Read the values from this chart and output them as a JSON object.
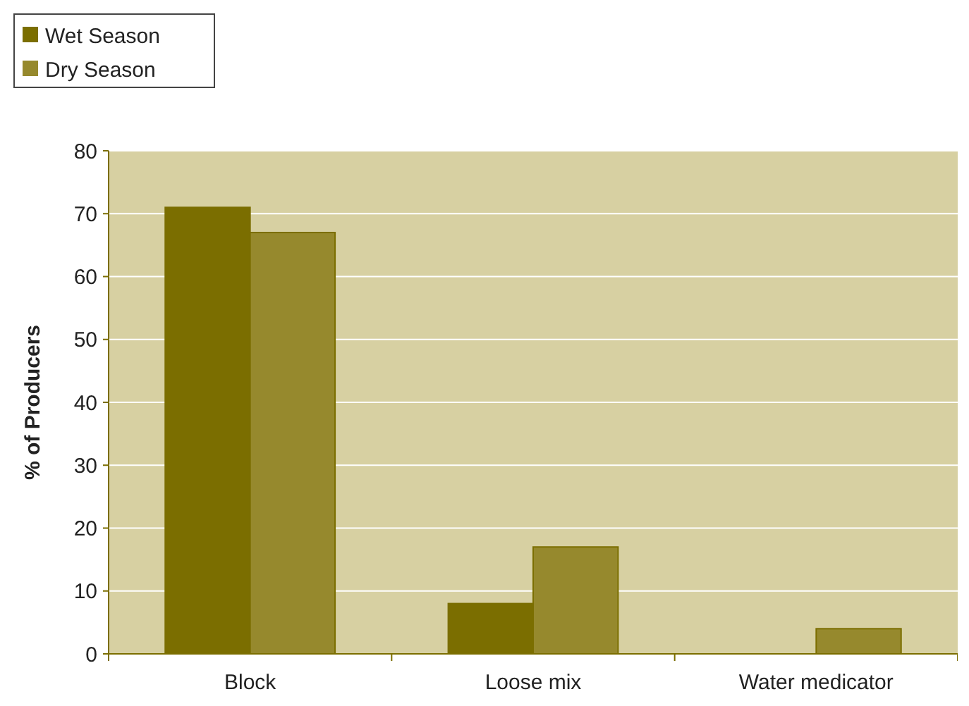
{
  "chart_data": {
    "type": "bar",
    "ylabel": "% of Producers",
    "categories": [
      "Block",
      "Loose mix",
      "Water medicator"
    ],
    "series": [
      {
        "name": "Wet Season",
        "color": "#7b6e00",
        "values": [
          71,
          8,
          0
        ]
      },
      {
        "name": "Dry Season",
        "color": "#96892d",
        "values": [
          67,
          17,
          4
        ]
      }
    ],
    "ylim": [
      0,
      80
    ],
    "yticks": [
      0,
      10,
      20,
      30,
      40,
      50,
      60,
      70,
      80
    ],
    "grid": "y",
    "legend": "top left"
  }
}
